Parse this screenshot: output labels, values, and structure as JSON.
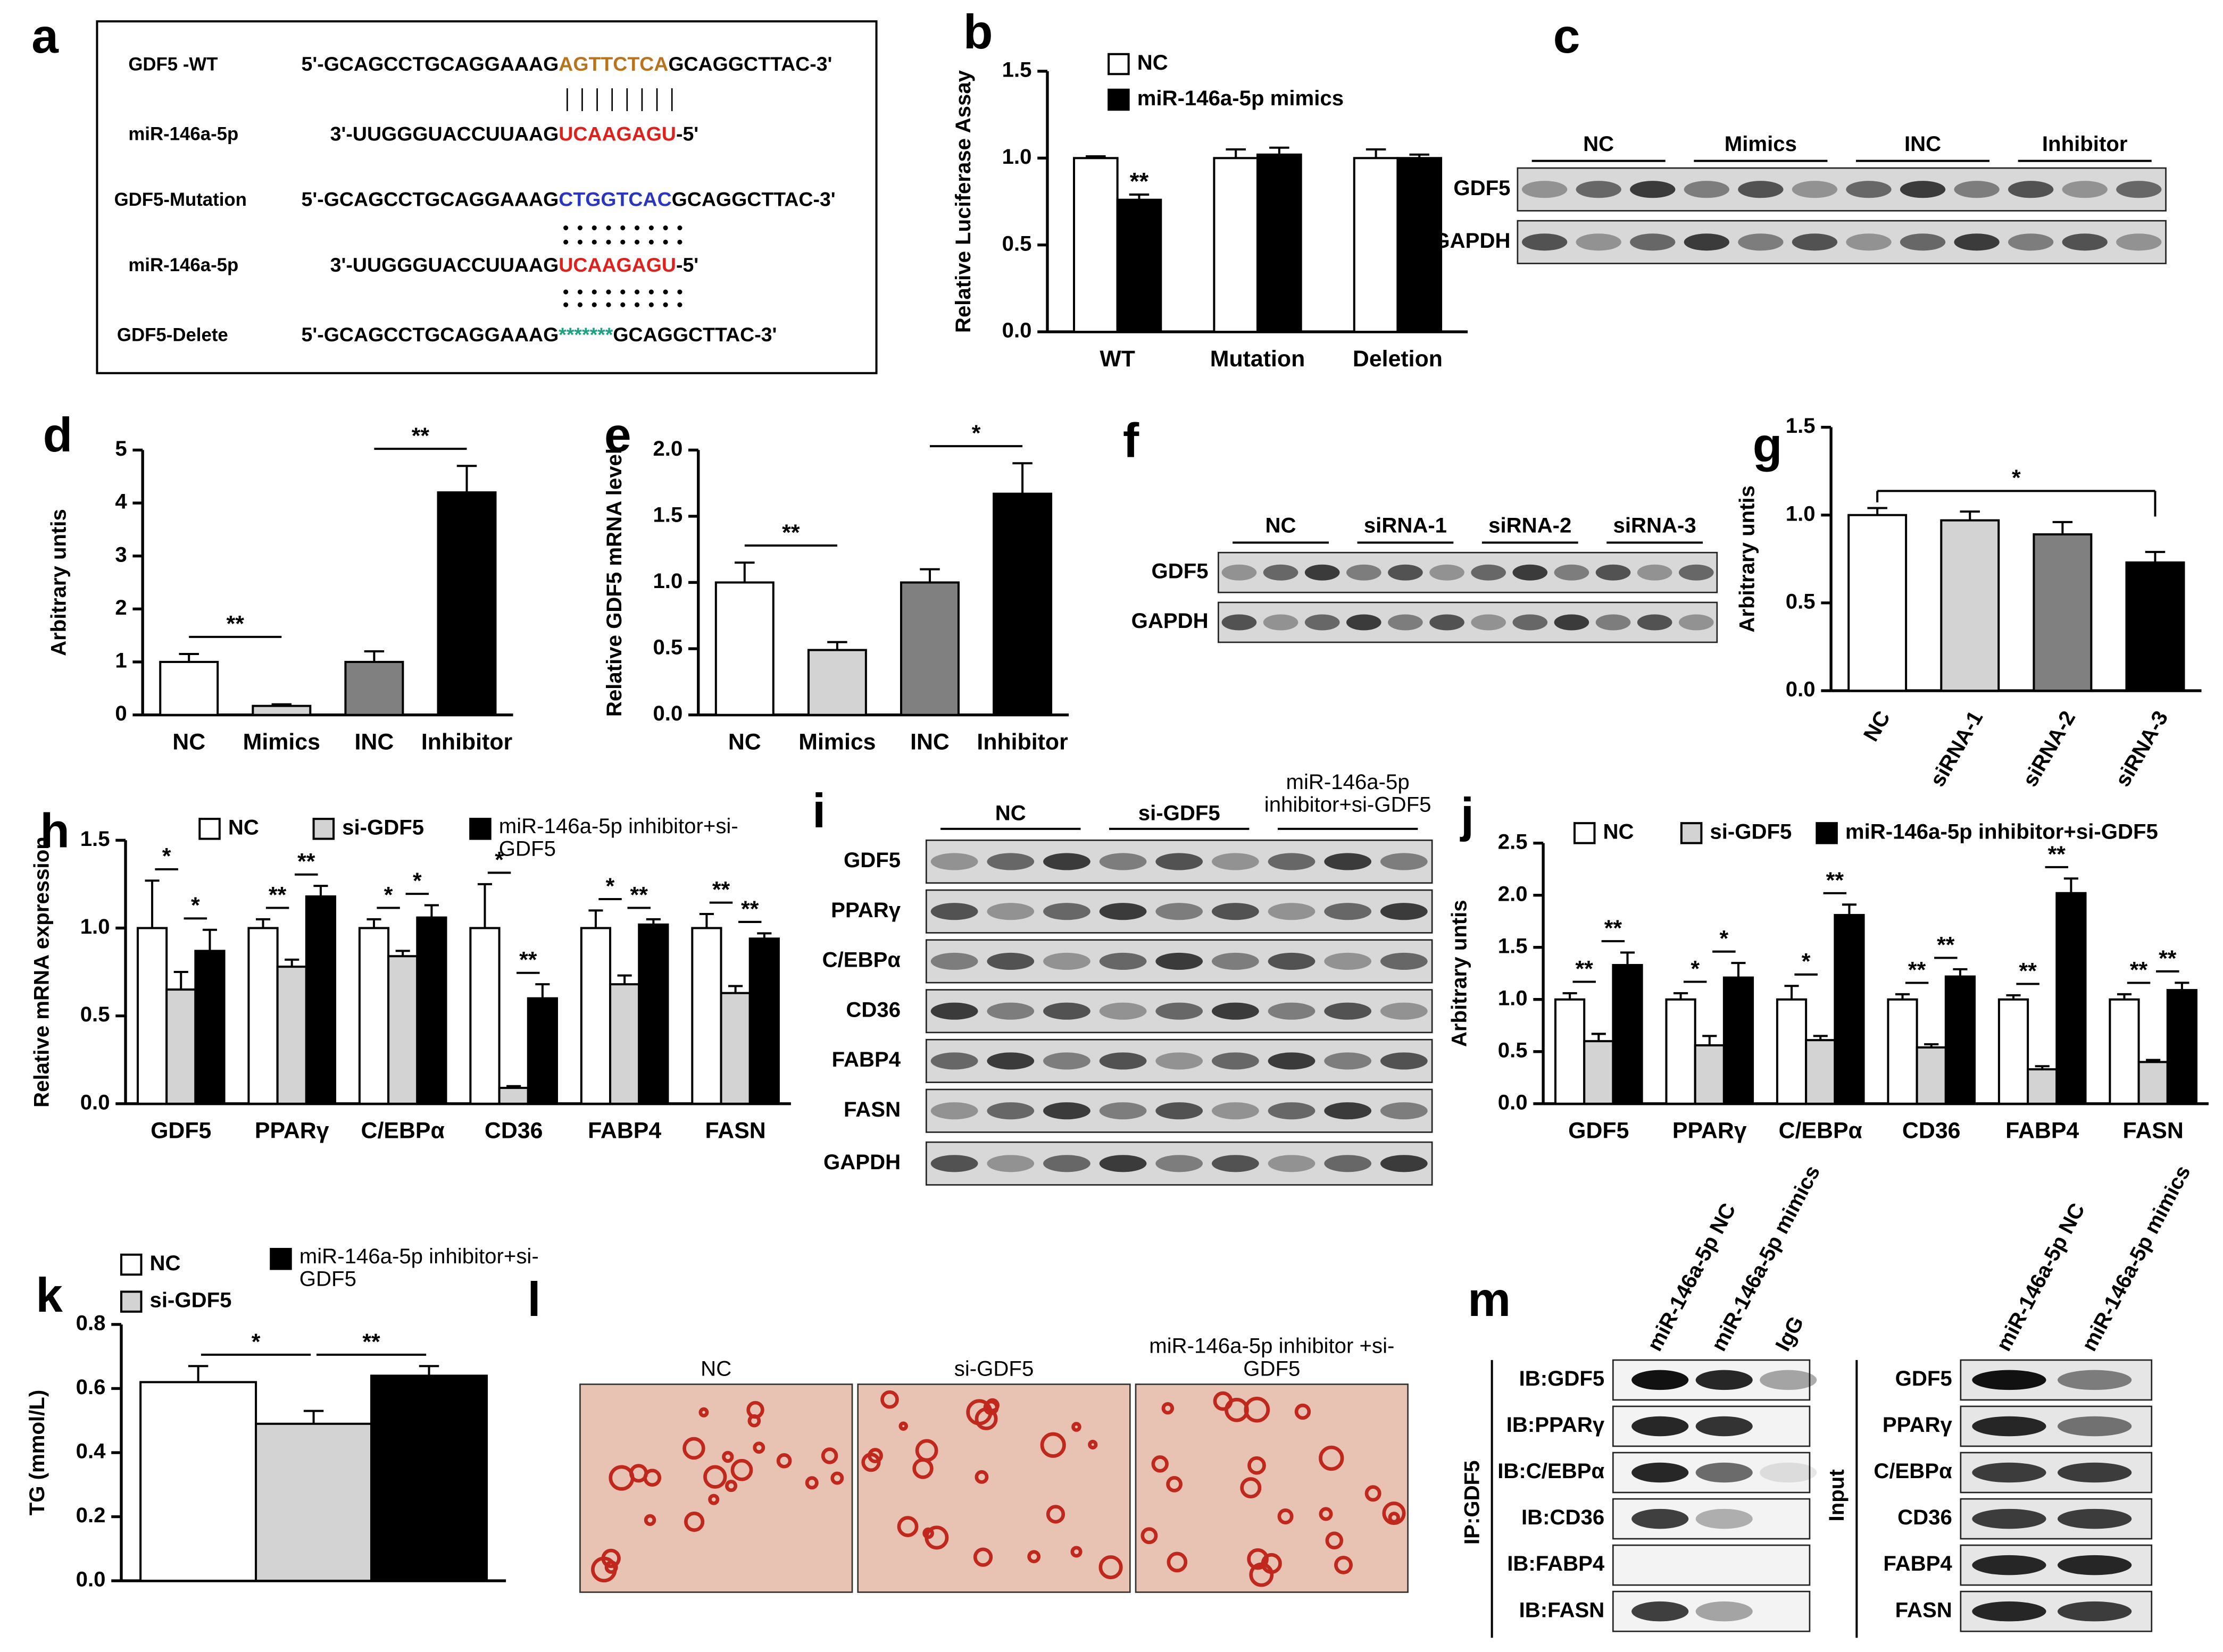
{
  "sequence_panel": {
    "panel": "a",
    "rows": [
      {
        "label": "GDF5 -WT",
        "parts": [
          "5'-GCAGCCTGCAGGAAAG",
          "AGTTCTCA",
          "GCAGGCTTAC-3'"
        ],
        "color": "#b8731c"
      },
      {
        "label": "miR-146a-5p",
        "parts": [
          "3'-UUGGGUACCUUAAG",
          "UCAAGAGU",
          "-5'"
        ],
        "color": "#e0201b"
      },
      {
        "label": "GDF5-Mutation",
        "parts": [
          "5'-GCAGCCTGCAGGAAAG",
          "CTGGTCAC",
          "GCAGGCTTAC-3'"
        ],
        "color": "#2a35c0"
      },
      {
        "label": "miR-146a-5p",
        "parts": [
          "3'-UUGGGUACCUUAAG",
          "UCAAGAGU",
          "-5'"
        ],
        "color": "#e0201b"
      },
      {
        "label": "GDF5-Delete",
        "parts": [
          "5'-GCAGCCTGCAGGAAAG",
          "*******",
          "GCAGGCTTAC-3'"
        ],
        "color": "#19a383"
      }
    ]
  },
  "blots": [
    {
      "panel": "c",
      "groups": [
        "NC",
        "Mimics",
        "INC",
        "Inhibitor"
      ],
      "rows": [
        "GDF5",
        "GAPDH"
      ]
    },
    {
      "panel": "f",
      "groups": [
        "NC",
        "siRNA-1",
        "siRNA-2",
        "siRNA-3"
      ],
      "rows": [
        "GDF5",
        "GAPDH"
      ]
    },
    {
      "panel": "i",
      "groups": [
        "NC",
        "si-GDF5",
        "miR-146a-5p inhibitor+si-GDF5"
      ],
      "rows": [
        "GDF5",
        "PPARγ",
        "C/EBPα",
        "CD36",
        "FABP4",
        "FASN",
        "GAPDH"
      ]
    }
  ],
  "staining": {
    "panel": "l",
    "images": [
      "NC",
      "si-GDF5",
      "miR-146a-5p inhibitor +si-GDF5"
    ]
  },
  "coip": {
    "panel": "m",
    "ip_label": "IP:GDF5",
    "ip_lanes": [
      "miR-146a-5p NC",
      "miR-146a-5p mimics",
      "IgG"
    ],
    "ip_rows": [
      "IB:GDF5",
      "IB:PPARγ",
      "IB:C/EBPα",
      "IB:CD36",
      "IB:FABP4",
      "IB:FASN"
    ],
    "input_label": "Input",
    "input_lanes": [
      "miR-146a-5p NC",
      "miR-146a-5p mimics"
    ],
    "input_rows": [
      "GDF5",
      "PPARγ",
      "C/EBPα",
      "CD36",
      "FABP4",
      "FASN"
    ]
  },
  "chart_data": [
    {
      "type": "bar",
      "panel": "b",
      "ylabel": "Relative Luciferase Assay",
      "categories": [
        "WT",
        "Mutation",
        "Deletion"
      ],
      "series": [
        {
          "name": "NC",
          "color": "#ffffff",
          "values": [
            1.0,
            1.0,
            1.0
          ],
          "errors": [
            0.01,
            0.05,
            0.05
          ]
        },
        {
          "name": "miR-146a-5p mimics",
          "color": "#000000",
          "values": [
            0.76,
            1.02,
            1.0
          ],
          "errors": [
            0.03,
            0.04,
            0.02
          ]
        }
      ],
      "ylim": [
        0,
        1.5
      ],
      "yticks": [
        {
          "value": 0,
          "label": "0.0"
        },
        {
          "value": 0.5,
          "label": "0.5"
        },
        {
          "value": 1,
          "label": "1.0"
        },
        {
          "value": 1.5,
          "label": "1.5"
        }
      ],
      "annotations": [
        {
          "category": 0,
          "series": 1,
          "text": "**"
        }
      ]
    },
    {
      "type": "bar",
      "panel": "d",
      "ylabel": "Arbitrary untis",
      "categories": [
        "NC",
        "Mimics",
        "INC",
        "Inhibitor"
      ],
      "values": [
        1.0,
        0.17,
        1.0,
        4.2
      ],
      "errors": [
        0.15,
        0.03,
        0.2,
        0.5
      ],
      "colors": [
        "#ffffff",
        "#d3d3d3",
        "#808080",
        "#000000"
      ],
      "ylim": [
        0,
        5
      ],
      "yticks": [
        0,
        1,
        2,
        3,
        4,
        5
      ],
      "significance": [
        {
          "between": [
            0,
            1
          ],
          "text": "**"
        },
        {
          "between": [
            2,
            3
          ],
          "text": "**"
        }
      ]
    },
    {
      "type": "bar",
      "panel": "e",
      "ylabel": "Relative GDF5 mRNA level",
      "categories": [
        "NC",
        "Mimics",
        "INC",
        "Inhibitor"
      ],
      "values": [
        1.0,
        0.49,
        1.0,
        1.67
      ],
      "errors": [
        0.15,
        0.06,
        0.1,
        0.23
      ],
      "colors": [
        "#ffffff",
        "#d3d3d3",
        "#808080",
        "#000000"
      ],
      "ylim": [
        0,
        2
      ],
      "yticks": [
        {
          "value": 0,
          "label": "0.0"
        },
        {
          "value": 0.5,
          "label": "0.5"
        },
        {
          "value": 1,
          "label": "1.0"
        },
        {
          "value": 1.5,
          "label": "1.5"
        },
        {
          "value": 2,
          "label": "2.0"
        }
      ],
      "significance": [
        {
          "between": [
            0,
            1
          ],
          "text": "**"
        },
        {
          "between": [
            2,
            3
          ],
          "text": "*"
        }
      ]
    },
    {
      "type": "bar",
      "panel": "g",
      "ylabel": "Arbitrary untis",
      "categories": [
        "NC",
        "siRNA-1",
        "siRNA-2",
        "siRNA-3"
      ],
      "values": [
        1.0,
        0.97,
        0.89,
        0.73
      ],
      "errors": [
        0.04,
        0.05,
        0.07,
        0.06
      ],
      "colors": [
        "#ffffff",
        "#d3d3d3",
        "#808080",
        "#000000"
      ],
      "ylim": [
        0,
        1.5
      ],
      "yticks": [
        {
          "value": 0,
          "label": "0.0"
        },
        {
          "value": 0.5,
          "label": "0.5"
        },
        {
          "value": 1,
          "label": "1.0"
        },
        {
          "value": 1.5,
          "label": "1.5"
        }
      ],
      "significance": [
        {
          "between": [
            0,
            3
          ],
          "text": "*"
        }
      ]
    },
    {
      "type": "bar",
      "panel": "h",
      "ylabel": "Relative mRNA expression",
      "categories": [
        "GDF5",
        "PPARγ",
        "C/EBPα",
        "CD36",
        "FABP4",
        "FASN"
      ],
      "series": [
        {
          "name": "NC",
          "color": "#ffffff",
          "values": [
            1,
            1,
            1,
            1,
            1,
            1
          ],
          "errors": [
            0.27,
            0.05,
            0.05,
            0.25,
            0.1,
            0.08
          ]
        },
        {
          "name": "si-GDF5",
          "color": "#d3d3d3",
          "values": [
            0.65,
            0.78,
            0.84,
            0.09,
            0.68,
            0.63
          ],
          "errors": [
            0.1,
            0.04,
            0.03,
            0.01,
            0.05,
            0.04
          ]
        },
        {
          "name": "miR-146a-5p inhibitor+si-GDF5",
          "color": "#000000",
          "values": [
            0.87,
            1.18,
            1.06,
            0.6,
            1.02,
            0.94
          ],
          "errors": [
            0.12,
            0.06,
            0.07,
            0.08,
            0.03,
            0.03
          ]
        }
      ],
      "ylim": [
        0,
        1.5
      ],
      "yticks": [
        {
          "value": 0,
          "label": "0.0"
        },
        {
          "value": 0.5,
          "label": "0.5"
        },
        {
          "value": 1,
          "label": "1.0"
        },
        {
          "value": 1.5,
          "label": "1.5"
        }
      ],
      "significance": [
        {
          "category": 0,
          "between": [
            0,
            1
          ],
          "text": "*"
        },
        {
          "category": 0,
          "between": [
            1,
            2
          ],
          "text": "*"
        },
        {
          "category": 1,
          "between": [
            0,
            1
          ],
          "text": "**"
        },
        {
          "category": 1,
          "between": [
            1,
            2
          ],
          "text": "**"
        },
        {
          "category": 2,
          "between": [
            0,
            1
          ],
          "text": "*"
        },
        {
          "category": 2,
          "between": [
            1,
            2
          ],
          "text": "*"
        },
        {
          "category": 3,
          "between": [
            0,
            1
          ],
          "text": "*"
        },
        {
          "category": 3,
          "between": [
            1,
            2
          ],
          "text": "**"
        },
        {
          "category": 4,
          "between": [
            0,
            1
          ],
          "text": "*"
        },
        {
          "category": 4,
          "between": [
            1,
            2
          ],
          "text": "**"
        },
        {
          "category": 5,
          "between": [
            0,
            1
          ],
          "text": "**"
        },
        {
          "category": 5,
          "between": [
            1,
            2
          ],
          "text": "**"
        }
      ]
    },
    {
      "type": "bar",
      "panel": "j",
      "ylabel": "Arbitrary untis",
      "categories": [
        "GDF5",
        "PPARγ",
        "C/EBPα",
        "CD36",
        "FABP4",
        "FASN"
      ],
      "series": [
        {
          "name": "NC",
          "color": "#ffffff",
          "values": [
            1,
            1,
            1,
            1,
            1,
            1
          ],
          "errors": [
            0.06,
            0.06,
            0.13,
            0.05,
            0.04,
            0.05
          ]
        },
        {
          "name": "si-GDF5",
          "color": "#d3d3d3",
          "values": [
            0.6,
            0.56,
            0.61,
            0.54,
            0.33,
            0.4
          ],
          "errors": [
            0.07,
            0.09,
            0.04,
            0.03,
            0.03,
            0.02
          ]
        },
        {
          "name": "miR-146a-5p inhibitor+si-GDF5",
          "color": "#000000",
          "values": [
            1.33,
            1.21,
            1.81,
            1.22,
            2.02,
            1.09
          ],
          "errors": [
            0.12,
            0.14,
            0.1,
            0.07,
            0.14,
            0.07
          ]
        }
      ],
      "ylim": [
        0,
        2.5
      ],
      "yticks": [
        {
          "value": 0,
          "label": "0.0"
        },
        {
          "value": 0.5,
          "label": "0.5"
        },
        {
          "value": 1,
          "label": "1.0"
        },
        {
          "value": 1.5,
          "label": "1.5"
        },
        {
          "value": 2,
          "label": "2.0"
        },
        {
          "value": 2.5,
          "label": "2.5"
        }
      ],
      "significance": [
        {
          "category": 0,
          "between": [
            0,
            1
          ],
          "text": "**"
        },
        {
          "category": 0,
          "between": [
            1,
            2
          ],
          "text": "**"
        },
        {
          "category": 1,
          "between": [
            0,
            1
          ],
          "text": "*"
        },
        {
          "category": 1,
          "between": [
            1,
            2
          ],
          "text": "*"
        },
        {
          "category": 2,
          "between": [
            0,
            1
          ],
          "text": "*"
        },
        {
          "category": 2,
          "between": [
            1,
            2
          ],
          "text": "**"
        },
        {
          "category": 3,
          "between": [
            0,
            1
          ],
          "text": "**"
        },
        {
          "category": 3,
          "between": [
            1,
            2
          ],
          "text": "**"
        },
        {
          "category": 4,
          "between": [
            0,
            1
          ],
          "text": "**"
        },
        {
          "category": 4,
          "between": [
            1,
            2
          ],
          "text": "**"
        },
        {
          "category": 5,
          "between": [
            0,
            1
          ],
          "text": "**"
        },
        {
          "category": 5,
          "between": [
            1,
            2
          ],
          "text": "**"
        }
      ]
    },
    {
      "type": "bar",
      "panel": "k",
      "ylabel": "TG (mmol/L)",
      "categories": [
        null
      ],
      "series": [
        {
          "name": "NC",
          "color": "#ffffff",
          "values": [
            0.62
          ],
          "errors": [
            0.05
          ]
        },
        {
          "name": "si-GDF5",
          "color": "#d3d3d3",
          "values": [
            0.49
          ],
          "errors": [
            0.04
          ]
        },
        {
          "name": "miR-146a-5p inhibitor+si-GDF5",
          "color": "#000000",
          "values": [
            0.64
          ],
          "errors": [
            0.03
          ]
        }
      ],
      "ylim": [
        0,
        0.8
      ],
      "yticks": [
        {
          "value": 0,
          "label": "0.0"
        },
        {
          "value": 0.2,
          "label": "0.2"
        },
        {
          "value": 0.4,
          "label": "0.4"
        },
        {
          "value": 0.6,
          "label": "0.6"
        },
        {
          "value": 0.8,
          "label": "0.8"
        }
      ],
      "significance": [
        {
          "category": 0,
          "between": [
            0,
            1
          ],
          "text": "*"
        },
        {
          "category": 0,
          "between": [
            1,
            2
          ],
          "text": "**"
        }
      ]
    }
  ]
}
